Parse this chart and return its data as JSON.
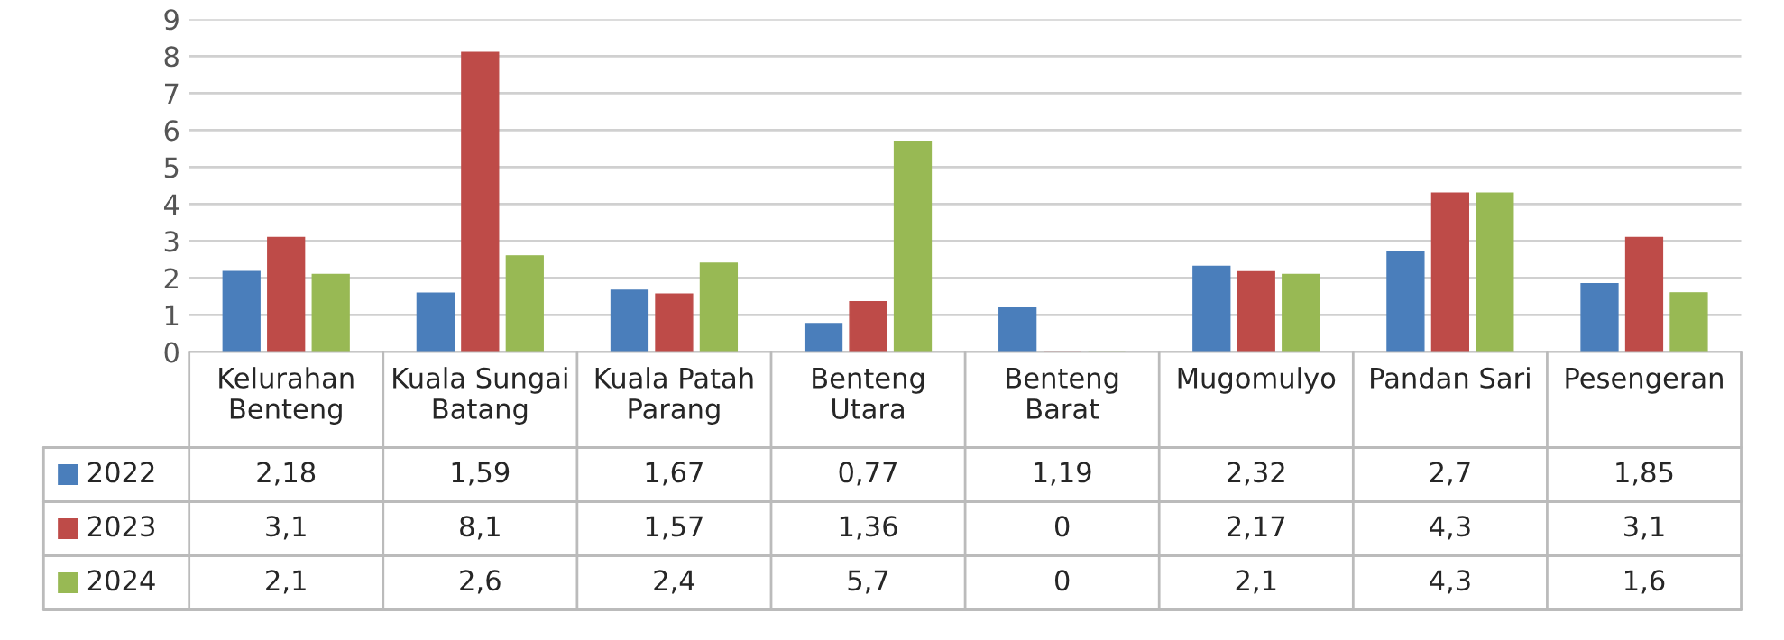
{
  "chart_data": {
    "type": "bar",
    "categories": [
      "Kelurahan\nBenteng",
      "Kuala Sungai\nBatang",
      "Kuala Patah\nParang",
      "Benteng\nUtara",
      "Benteng\nBarat",
      "Mugomulyo",
      "Pandan Sari",
      "Pesengeran"
    ],
    "series": [
      {
        "name": "2022",
        "color": "#4a7ebb",
        "values": [
          2.18,
          1.59,
          1.67,
          0.77,
          1.19,
          2.32,
          2.7,
          1.85
        ],
        "value_labels": [
          "2,18",
          "1,59",
          "1,67",
          "0,77",
          "1,19",
          "2,32",
          "2,7",
          "1,85"
        ]
      },
      {
        "name": "2023",
        "color": "#be4b48",
        "values": [
          3.1,
          8.1,
          1.57,
          1.36,
          0,
          2.17,
          4.3,
          3.1
        ],
        "value_labels": [
          "3,1",
          "8,1",
          "1,57",
          "1,36",
          "0",
          "2,17",
          "4,3",
          "3,1"
        ]
      },
      {
        "name": "2024",
        "color": "#98b954",
        "values": [
          2.1,
          2.6,
          2.4,
          5.7,
          0,
          2.1,
          4.3,
          1.6
        ],
        "value_labels": [
          "2,1",
          "2,6",
          "2,4",
          "5,7",
          "0",
          "2,1",
          "4,3",
          "1,6"
        ]
      }
    ],
    "ylim": [
      0,
      9
    ],
    "yticks": [
      0,
      1,
      2,
      3,
      4,
      5,
      6,
      7,
      8,
      9
    ],
    "grid": "y",
    "legend": "bottom"
  }
}
